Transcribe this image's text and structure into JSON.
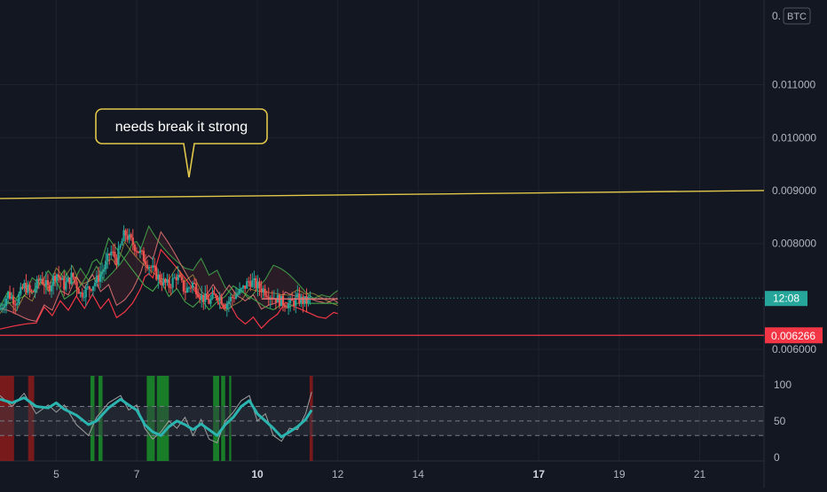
{
  "currency_badge": "BTC",
  "colors": {
    "background": "#131722",
    "grid": "#1e222d",
    "axis_text": "#b2b5be",
    "candle_up": "#26a69a",
    "candle_down": "#ef5350",
    "resistance_line": "#e2c84a",
    "support_line": "#f23645",
    "ichimoku_green": "#43a047",
    "ichimoku_red": "#e57373",
    "rsi_line": "#2bb5b0",
    "rsi_thin": "#9e9e9e",
    "rsi_band": "#363a45",
    "rsi_green_zone": "#1b8e2a",
    "rsi_red_zone": "#8b1a1a"
  },
  "annotation": {
    "text": "needs break it strong"
  },
  "chart_data": [
    {
      "type": "candlestick",
      "pane": "price",
      "y_tick_labels": [
        "0.011000",
        "0.010000",
        "0.009000",
        "0.008000",
        "0.006000"
      ],
      "y_ticks": [
        0.011,
        0.01,
        0.009,
        0.008,
        0.006
      ],
      "top_tick_partial": "0.",
      "y_range": [
        0.0055,
        0.0126
      ],
      "resistance_line": {
        "from": [
          3.6,
          0.00885
        ],
        "to": [
          22.6,
          0.009
        ]
      },
      "support_line": {
        "value": 0.006266,
        "label": "0.006266"
      },
      "current_price_line": {
        "value": 0.00697,
        "countdown_label": "12:08"
      },
      "price_path": [
        [
          3.6,
          0.00675
        ],
        [
          3.8,
          0.00705
        ],
        [
          4.0,
          0.0069
        ],
        [
          4.2,
          0.0072
        ],
        [
          4.4,
          0.00705
        ],
        [
          4.6,
          0.00735
        ],
        [
          4.8,
          0.00715
        ],
        [
          5.0,
          0.00745
        ],
        [
          5.2,
          0.0072
        ],
        [
          5.4,
          0.0074
        ],
        [
          5.6,
          0.00705
        ],
        [
          5.8,
          0.00715
        ],
        [
          6.0,
          0.0073
        ],
        [
          6.2,
          0.00755
        ],
        [
          6.35,
          0.00785
        ],
        [
          6.5,
          0.0077
        ],
        [
          6.7,
          0.0082
        ],
        [
          6.85,
          0.00805
        ],
        [
          7.0,
          0.0079
        ],
        [
          7.2,
          0.0077
        ],
        [
          7.4,
          0.0075
        ],
        [
          7.6,
          0.0073
        ],
        [
          7.8,
          0.0072
        ],
        [
          8.0,
          0.0074
        ],
        [
          8.2,
          0.0071
        ],
        [
          8.4,
          0.00725
        ],
        [
          8.6,
          0.007
        ],
        [
          8.8,
          0.0069
        ],
        [
          9.0,
          0.00705
        ],
        [
          9.2,
          0.00685
        ],
        [
          9.4,
          0.007
        ],
        [
          9.6,
          0.0071
        ],
        [
          9.8,
          0.0073
        ],
        [
          10.0,
          0.0072
        ],
        [
          10.2,
          0.0071
        ],
        [
          10.4,
          0.007
        ],
        [
          10.6,
          0.0069
        ],
        [
          10.8,
          0.00685
        ],
        [
          11.0,
          0.00695
        ],
        [
          11.2,
          0.0069
        ],
        [
          11.35,
          0.00697
        ]
      ]
    },
    {
      "type": "line",
      "pane": "rsi",
      "y_tick_labels": [
        "100",
        "50",
        "0"
      ],
      "y_ticks": [
        100,
        50,
        0
      ],
      "y_range": [
        -5,
        112
      ],
      "band": [
        30,
        70
      ],
      "mid_line": 50,
      "green_zones": [
        [
          5.85,
          5.95
        ],
        [
          6.05,
          6.15
        ],
        [
          7.25,
          7.45
        ],
        [
          7.5,
          7.8
        ],
        [
          8.9,
          9.05
        ],
        [
          9.1,
          9.2
        ],
        [
          9.3,
          9.35
        ]
      ],
      "red_zones": [
        [
          3.6,
          3.95
        ],
        [
          4.3,
          4.45
        ],
        [
          11.3,
          11.38
        ]
      ],
      "rsi_path": [
        [
          3.6,
          80
        ],
        [
          3.9,
          75
        ],
        [
          4.2,
          82
        ],
        [
          4.5,
          70
        ],
        [
          4.8,
          68
        ],
        [
          5.0,
          75
        ],
        [
          5.2,
          66
        ],
        [
          5.5,
          58
        ],
        [
          5.8,
          45
        ],
        [
          6.0,
          50
        ],
        [
          6.3,
          68
        ],
        [
          6.6,
          80
        ],
        [
          6.8,
          72
        ],
        [
          7.0,
          65
        ],
        [
          7.2,
          45
        ],
        [
          7.4,
          35
        ],
        [
          7.6,
          30
        ],
        [
          7.8,
          42
        ],
        [
          8.0,
          50
        ],
        [
          8.2,
          45
        ],
        [
          8.4,
          38
        ],
        [
          8.6,
          46
        ],
        [
          8.8,
          38
        ],
        [
          9.0,
          30
        ],
        [
          9.2,
          45
        ],
        [
          9.4,
          55
        ],
        [
          9.6,
          70
        ],
        [
          9.8,
          78
        ],
        [
          10.0,
          60
        ],
        [
          10.2,
          50
        ],
        [
          10.4,
          40
        ],
        [
          10.6,
          28
        ],
        [
          10.8,
          35
        ],
        [
          11.0,
          42
        ],
        [
          11.2,
          52
        ],
        [
          11.35,
          65
        ]
      ],
      "rsi_thin_path": [
        [
          3.6,
          85
        ],
        [
          3.9,
          70
        ],
        [
          4.2,
          88
        ],
        [
          4.5,
          60
        ],
        [
          4.8,
          72
        ],
        [
          5.0,
          62
        ],
        [
          5.2,
          72
        ],
        [
          5.5,
          45
        ],
        [
          5.8,
          30
        ],
        [
          6.0,
          55
        ],
        [
          6.3,
          75
        ],
        [
          6.6,
          85
        ],
        [
          6.8,
          65
        ],
        [
          7.0,
          72
        ],
        [
          7.2,
          40
        ],
        [
          7.4,
          25
        ],
        [
          7.6,
          35
        ],
        [
          7.8,
          50
        ],
        [
          8.0,
          40
        ],
        [
          8.2,
          55
        ],
        [
          8.4,
          30
        ],
        [
          8.6,
          52
        ],
        [
          8.8,
          25
        ],
        [
          9.0,
          20
        ],
        [
          9.2,
          50
        ],
        [
          9.4,
          62
        ],
        [
          9.6,
          78
        ],
        [
          9.8,
          85
        ],
        [
          10.0,
          50
        ],
        [
          10.2,
          60
        ],
        [
          10.4,
          30
        ],
        [
          10.6,
          22
        ],
        [
          10.8,
          40
        ],
        [
          11.0,
          38
        ],
        [
          11.2,
          60
        ],
        [
          11.35,
          90
        ]
      ]
    }
  ],
  "x_axis": {
    "ticks": [
      {
        "value": 5,
        "label": "5",
        "bold": false
      },
      {
        "value": 7,
        "label": "7",
        "bold": false
      },
      {
        "value": 10,
        "label": "10",
        "bold": true
      },
      {
        "value": 12,
        "label": "12",
        "bold": false
      },
      {
        "value": 14,
        "label": "14",
        "bold": false
      },
      {
        "value": 17,
        "label": "17",
        "bold": true
      },
      {
        "value": 19,
        "label": "19",
        "bold": false
      },
      {
        "value": 21,
        "label": "21",
        "bold": false
      }
    ],
    "range": [
      3.6,
      22.6
    ]
  }
}
